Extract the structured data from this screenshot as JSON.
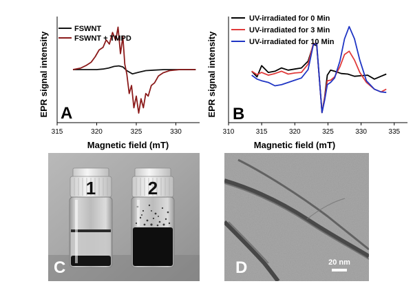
{
  "figure": {
    "panels": {
      "A": {
        "letter": "A"
      },
      "B": {
        "letter": "B"
      },
      "C": {
        "letter": "C",
        "vial_labels": [
          "1",
          "2"
        ]
      },
      "D": {
        "letter": "D",
        "scale_bar_label": "20 nm"
      }
    }
  },
  "chart_data": [
    {
      "panel": "A",
      "type": "line",
      "xlabel": "Magnetic field (mT)",
      "ylabel": "EPR signal intensity",
      "xlim": [
        315,
        333
      ],
      "xticks": [
        315,
        320,
        325,
        330
      ],
      "legend_position": "top-left",
      "grid": false,
      "series": [
        {
          "name": "FSWNT",
          "color": "#111111",
          "x": [
            317,
            318,
            319,
            320,
            320.8,
            321.5,
            322.2,
            322.8,
            323.3,
            323.8,
            324.5,
            325.3,
            326.2,
            327.2,
            328.5,
            330,
            331.5,
            332.5
          ],
          "y": [
            0.0,
            0.0,
            0.0,
            0.0,
            0.01,
            0.03,
            0.06,
            0.07,
            0.05,
            -0.02,
            -0.08,
            -0.05,
            -0.02,
            -0.01,
            0.0,
            0.0,
            0.0,
            0.0
          ]
        },
        {
          "name": "FSWNT + TMPD",
          "color": "#8b1a1a",
          "x": [
            317,
            318,
            318.7,
            319.3,
            319.8,
            320.3,
            320.8,
            321.2,
            321.6,
            322.0,
            322.4,
            322.7,
            323.0,
            323.3,
            323.55,
            323.8,
            324.1,
            324.4,
            324.7,
            325.0,
            325.3,
            325.6,
            325.9,
            326.2,
            326.5,
            326.9,
            327.3,
            327.8,
            328.4,
            329.2,
            330.5,
            332.5
          ],
          "y": [
            0.0,
            0.03,
            0.08,
            0.14,
            0.24,
            0.37,
            0.42,
            0.56,
            0.48,
            0.7,
            0.55,
            0.8,
            0.3,
            0.62,
            0.1,
            -0.08,
            -0.45,
            -0.3,
            -0.72,
            -0.5,
            -0.82,
            -0.55,
            -0.72,
            -0.45,
            -0.5,
            -0.3,
            -0.25,
            -0.12,
            -0.06,
            -0.02,
            0.0,
            0.0
          ]
        }
      ]
    },
    {
      "panel": "B",
      "type": "line",
      "xlabel": "Magnetic field (mT)",
      "ylabel": "EPR signal intensity",
      "xlim": [
        310,
        337
      ],
      "xticks": [
        310,
        315,
        320,
        325,
        330,
        335
      ],
      "legend_position": "top-right",
      "grid": false,
      "series": [
        {
          "name": "UV-irradiated for 0 Min",
          "color": "#000000",
          "x": [
            313.5,
            314.3,
            315,
            316,
            317,
            318,
            319,
            320,
            321,
            322,
            322.8,
            323.3,
            323.7,
            324.1,
            324.5,
            324.9,
            325.4,
            326,
            327,
            328,
            329,
            330,
            331,
            332,
            333,
            333.8
          ],
          "y": [
            0.12,
            0.02,
            0.22,
            0.1,
            0.12,
            0.18,
            0.14,
            0.16,
            0.18,
            0.3,
            0.6,
            0.58,
            0.0,
            -0.62,
            -0.35,
            0.05,
            0.14,
            0.12,
            0.08,
            0.07,
            0.03,
            0.04,
            0.05,
            -0.02,
            0.03,
            0.07
          ]
        },
        {
          "name": "UV-irradiated for 3 Min",
          "color": "#e03a3a",
          "x": [
            313.5,
            314.3,
            315,
            316,
            317,
            318,
            319,
            320,
            321,
            322,
            322.8,
            323.3,
            323.7,
            324.1,
            324.5,
            324.9,
            325.4,
            326,
            326.8,
            327.5,
            328.2,
            329,
            329.8,
            330.8,
            332,
            333,
            333.8
          ],
          "y": [
            0.12,
            0.06,
            0.1,
            0.05,
            0.08,
            0.12,
            0.07,
            0.09,
            0.1,
            0.25,
            0.62,
            0.6,
            0.0,
            -0.62,
            -0.36,
            -0.05,
            -0.04,
            0.02,
            0.2,
            0.42,
            0.48,
            0.32,
            0.1,
            -0.08,
            -0.2,
            -0.25,
            -0.2
          ]
        },
        {
          "name": "UV-irradiated for 10 Min",
          "color": "#1f35c4",
          "x": [
            313.5,
            314.3,
            315,
            316,
            317,
            318,
            319,
            320,
            321,
            322,
            322.8,
            323.3,
            323.7,
            324.1,
            324.5,
            324.9,
            325.4,
            326,
            326.8,
            327.5,
            328.2,
            329,
            329.8,
            330.8,
            332,
            333,
            333.8
          ],
          "y": [
            0.05,
            -0.02,
            -0.05,
            -0.08,
            -0.14,
            -0.12,
            -0.08,
            -0.04,
            0.0,
            0.15,
            0.6,
            0.62,
            0.0,
            -0.62,
            -0.4,
            -0.12,
            -0.08,
            0.0,
            0.3,
            0.7,
            0.92,
            0.7,
            0.32,
            -0.05,
            -0.2,
            -0.25,
            -0.26
          ]
        }
      ]
    }
  ]
}
